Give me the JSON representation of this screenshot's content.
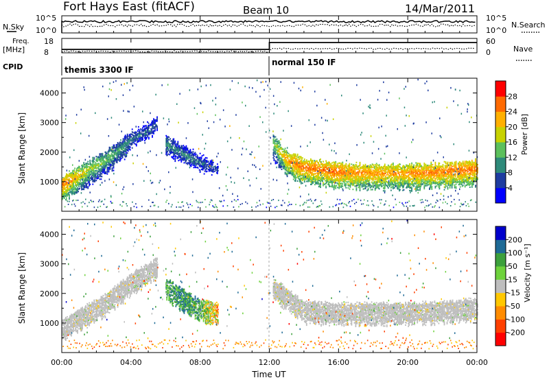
{
  "header": {
    "station": "Fort Hays East (fitACF)",
    "beam": "Beam 10",
    "date": "14/Mar/2011"
  },
  "top_panels": {
    "nsky_label": "N.Sky",
    "nsky_ticks": [
      "10^5",
      "10^0"
    ],
    "nsearch_label": "N.Search",
    "nsearch_ticks": [
      "10^5",
      "10^0"
    ],
    "freq_label": "Freq.",
    "freq_unit": "[MHz]",
    "freq_ticks": [
      "18",
      "8"
    ],
    "nave_label": "Nave",
    "nave_ticks": [
      "60",
      "0"
    ],
    "cpid_label": "CPID",
    "cpid_modes": [
      {
        "name": "themis 3300 IF",
        "start_hour": 0,
        "end_hour": 12
      },
      {
        "name": "normal 150 IF",
        "start_hour": 12,
        "end_hour": 24
      }
    ]
  },
  "colorbars": {
    "power": {
      "label": "Power [dB]",
      "ticks": [
        "28",
        "24",
        "20",
        "16",
        "12",
        "8",
        "4"
      ],
      "colors": [
        "#0000ff",
        "#1e3ca0",
        "#2e8a7a",
        "#5cc05c",
        "#c8d200",
        "#ffb000",
        "#ff6a00",
        "#ff0000"
      ]
    },
    "velocity": {
      "label": "Velocity [m s⁻¹]",
      "ticks": [
        "200",
        "100",
        "50",
        "15",
        "-15",
        "-50",
        "-100",
        "-200"
      ],
      "colors": [
        "#0000cc",
        "#1e6a96",
        "#3ca03c",
        "#6ed23c",
        "#bebebe",
        "#ffc800",
        "#ff8c00",
        "#ff4000",
        "#ff0000"
      ]
    }
  },
  "chart_data": [
    {
      "type": "heatmap",
      "title": "Power",
      "xlabel": "",
      "ylabel": "Slant Range [km]",
      "ylim": [
        0,
        4500
      ],
      "xlim": [
        0,
        24
      ],
      "yticks": [
        "4000",
        "3000",
        "2000",
        "1000"
      ],
      "features": [
        {
          "name": "band_pre_noon",
          "hours": [
            0,
            0.75,
            1.5,
            2.5,
            3.5,
            4.0,
            5.0,
            5.5
          ],
          "slant_range_km": [
            900,
            1150,
            1400,
            1750,
            2150,
            2450,
            2750,
            3000
          ],
          "power_dB": [
            26,
            22,
            18,
            15,
            12,
            10,
            8,
            8
          ]
        },
        {
          "name": "band_mid_morning",
          "hours": [
            6.0,
            6.75,
            7.5,
            8.25,
            9.0
          ],
          "slant_range_km": [
            2300,
            2050,
            1800,
            1600,
            1450
          ],
          "power_dB": [
            12,
            10,
            10,
            8,
            6
          ]
        },
        {
          "name": "band_afternoon",
          "hours": [
            12.2,
            13.0,
            14.0,
            16.0,
            18.0,
            20.0,
            22.0,
            24.0
          ],
          "slant_range_km": [
            2300,
            1750,
            1500,
            1350,
            1300,
            1300,
            1350,
            1450
          ],
          "power_dB": [
            16,
            24,
            26,
            26,
            24,
            24,
            26,
            26
          ]
        }
      ]
    },
    {
      "type": "heatmap",
      "title": "Velocity",
      "xlabel": "Time UT",
      "ylabel": "Slant Range [km]",
      "ylim": [
        0,
        4500
      ],
      "xlim": [
        0,
        24
      ],
      "yticks": [
        "4000",
        "3000",
        "2000",
        "1000"
      ],
      "xticks": [
        "00:00",
        "04:00",
        "08:00",
        "12:00",
        "16:00",
        "20:00",
        "00:00"
      ],
      "features": [
        {
          "name": "ground_scatter_morning",
          "hours": [
            0,
            1.0,
            2.5,
            4.0,
            5.5
          ],
          "slant_range_km": [
            900,
            1250,
            1750,
            2450,
            3000
          ],
          "velocity_ms": [
            0,
            0,
            0,
            0,
            0
          ]
        },
        {
          "name": "ionospheric_morning",
          "hours": [
            6.0,
            7.0,
            8.0,
            9.0
          ],
          "slant_range_km": [
            2300,
            1900,
            1550,
            1450
          ],
          "velocity_ms": [
            50,
            100,
            50,
            -50
          ]
        },
        {
          "name": "ground_scatter_afternoon",
          "hours": [
            12.2,
            14.0,
            16.0,
            18.0,
            20.0,
            22.0,
            24.0
          ],
          "slant_range_km": [
            2300,
            1500,
            1450,
            1450,
            1450,
            1500,
            1600
          ],
          "velocity_ms": [
            0,
            0,
            0,
            0,
            0,
            0,
            0
          ]
        }
      ]
    }
  ]
}
